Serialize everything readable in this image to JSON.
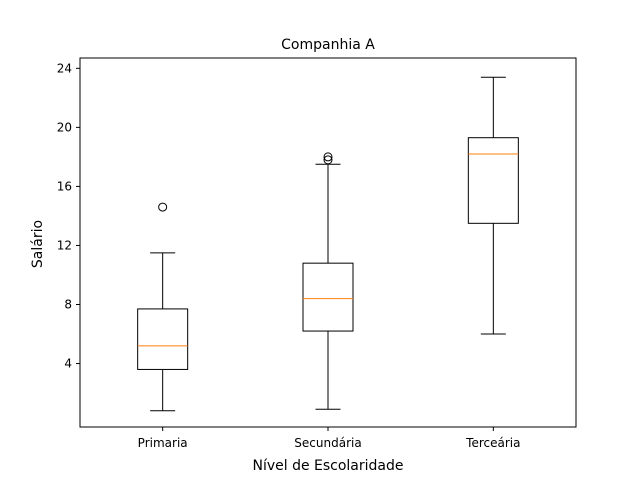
{
  "chart_data": {
    "type": "boxplot",
    "title": "Companhia A",
    "xlabel": "Nível de Escolaridade",
    "ylabel": "Salário",
    "categories": [
      "Primaria",
      "Secundária",
      "Terceária"
    ],
    "ylim": [
      -0.3,
      24.7
    ],
    "yticks": [
      4,
      8,
      12,
      16,
      20,
      24
    ],
    "boxes": [
      {
        "category": "Primaria",
        "whisker_low": 0.8,
        "q1": 3.6,
        "median": 5.2,
        "q3": 7.7,
        "whisker_high": 11.5,
        "outliers": [
          14.6
        ]
      },
      {
        "category": "Secundária",
        "whisker_low": 0.9,
        "q1": 6.2,
        "median": 8.4,
        "q3": 10.8,
        "whisker_high": 17.5,
        "outliers": [
          17.8,
          18.0
        ]
      },
      {
        "category": "Terceária",
        "whisker_low": 6.0,
        "q1": 13.5,
        "median": 18.2,
        "q3": 19.3,
        "whisker_high": 23.4,
        "outliers": []
      }
    ],
    "grid": false,
    "colors": {
      "box": "#000000",
      "median": "#ff7f0e",
      "outlier": "#000000"
    }
  }
}
